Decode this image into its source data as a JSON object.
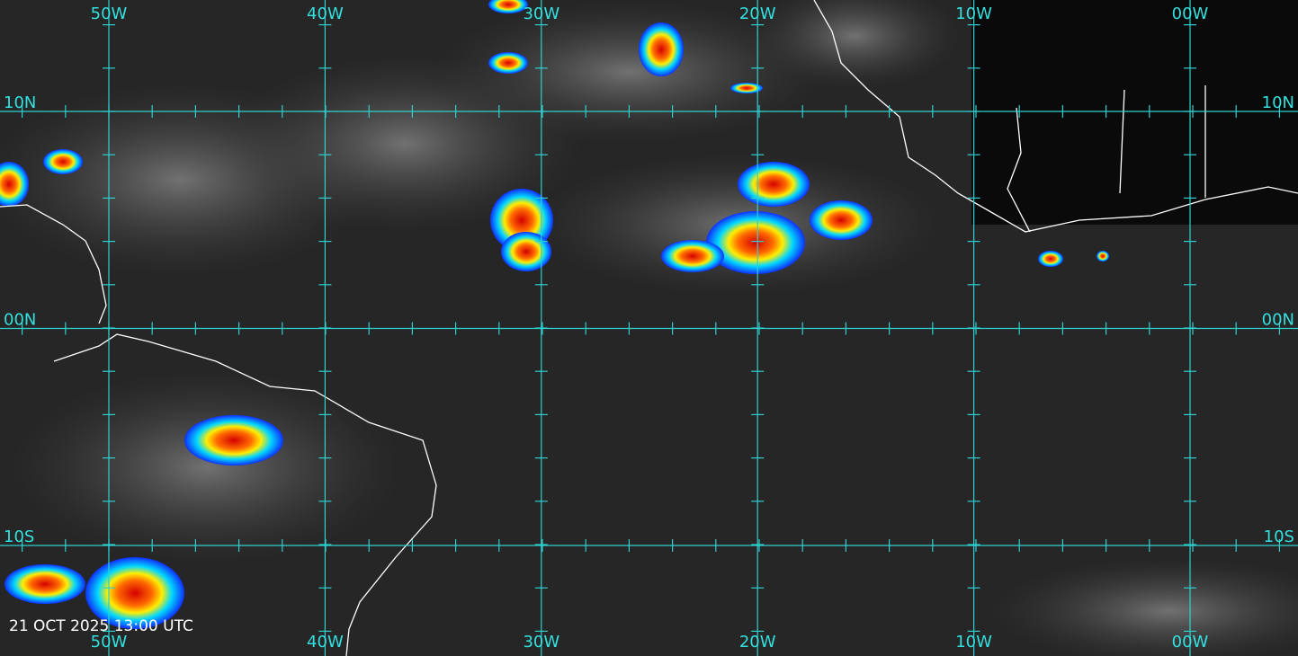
{
  "map": {
    "longitude_labels": [
      "50W",
      "40W",
      "30W",
      "20W",
      "10W",
      "00W"
    ],
    "latitude_labels": [
      "10N",
      "00N",
      "10S"
    ],
    "timestamp": "21 OCT 2025 13:00 UTC"
  }
}
